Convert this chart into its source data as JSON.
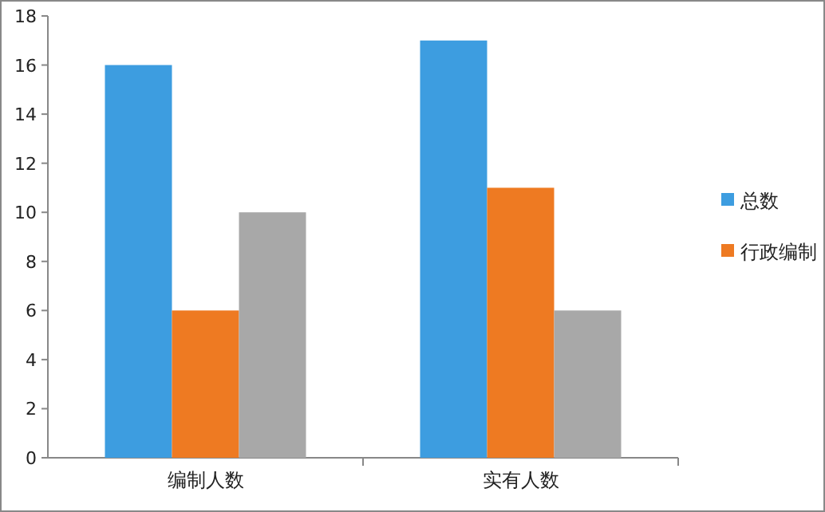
{
  "chart_data": {
    "type": "bar",
    "categories": [
      "编制人数",
      "实有人数"
    ],
    "series": [
      {
        "name": "总数",
        "color": "#3d9de0",
        "values": [
          16,
          17
        ]
      },
      {
        "name": "行政编制",
        "color": "#ee7a22",
        "values": [
          6,
          11
        ]
      },
      {
        "color": "#a8a8a8",
        "values": [
          10,
          6
        ]
      }
    ],
    "ylim": [
      0,
      18
    ],
    "yticks": [
      0,
      2,
      4,
      6,
      8,
      10,
      12,
      14,
      16,
      18
    ],
    "grid": false,
    "legend": "right"
  }
}
